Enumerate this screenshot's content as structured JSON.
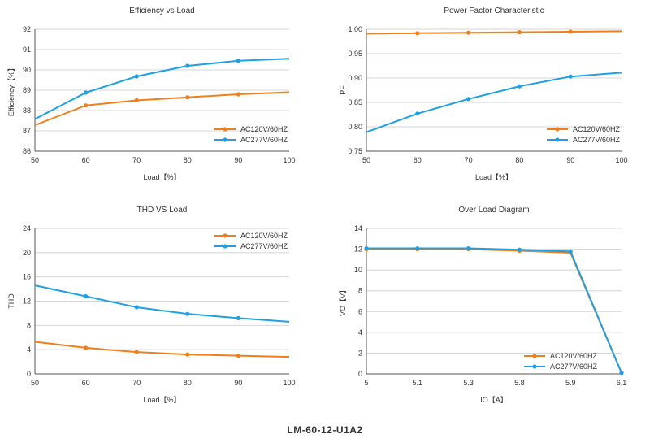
{
  "footer": "LM-60-12-U1A2",
  "colors": {
    "orange": "#f07f1a",
    "blue": "#1ea0e6",
    "grid": "#d4d4d4",
    "axis": "#555555"
  },
  "chart_data": [
    {
      "type": "line",
      "title": "Efficiency vs Load",
      "xlabel": "Load【%】",
      "ylabel": "Efficiency【%】",
      "xticks": [
        50,
        60,
        70,
        80,
        90,
        100
      ],
      "xtick_labels": [
        "50",
        "60",
        "70",
        "80",
        "90",
        "100"
      ],
      "yticks": [
        86,
        87,
        88,
        89,
        90,
        91,
        92
      ],
      "ytick_labels": [
        "86",
        "87",
        "88",
        "89",
        "90",
        "91",
        "92"
      ],
      "xlim": [
        50,
        100
      ],
      "ylim": [
        86,
        92
      ],
      "legend": "bottom-right",
      "series": [
        {
          "name": "AC120V/60HZ",
          "color": "orange",
          "x": [
            50,
            60,
            70,
            80,
            90,
            100
          ],
          "y": [
            87.28,
            88.25,
            88.5,
            88.65,
            88.8,
            88.9
          ],
          "markers": [
            60,
            70,
            80,
            90
          ]
        },
        {
          "name": "AC277V/60HZ",
          "color": "blue",
          "x": [
            50,
            60,
            70,
            80,
            90,
            100
          ],
          "y": [
            87.58,
            88.88,
            89.68,
            90.2,
            90.45,
            90.55
          ],
          "markers": [
            60,
            70,
            80,
            90
          ]
        }
      ]
    },
    {
      "type": "line",
      "title": "Power Factor Characteristic",
      "xlabel": "Load【%】",
      "ylabel": "PF",
      "xticks": [
        50,
        60,
        70,
        80,
        90,
        100
      ],
      "xtick_labels": [
        "50",
        "60",
        "70",
        "80",
        "90",
        "100"
      ],
      "yticks": [
        0.75,
        0.8,
        0.85,
        0.9,
        0.95,
        1.0
      ],
      "ytick_labels": [
        "0.75",
        "0.80",
        "0.85",
        "0.90",
        "0.95",
        "1.00"
      ],
      "xlim": [
        50,
        100
      ],
      "ylim": [
        0.75,
        1.0
      ],
      "legend": "bottom-right",
      "series": [
        {
          "name": "AC120V/60HZ",
          "color": "orange",
          "x": [
            50,
            60,
            70,
            80,
            90,
            100
          ],
          "y": [
            0.991,
            0.992,
            0.993,
            0.994,
            0.995,
            0.996
          ],
          "markers": [
            60,
            70,
            80,
            90
          ]
        },
        {
          "name": "AC277V/60HZ",
          "color": "blue",
          "x": [
            50,
            60,
            70,
            80,
            90,
            100
          ],
          "y": [
            0.789,
            0.827,
            0.857,
            0.883,
            0.903,
            0.911
          ],
          "markers": [
            60,
            70,
            80,
            90
          ]
        }
      ]
    },
    {
      "type": "line",
      "title": "THD VS Load",
      "xlabel": "Load【%】",
      "ylabel": "THD",
      "xticks": [
        50,
        60,
        70,
        80,
        90,
        100
      ],
      "xtick_labels": [
        "50",
        "60",
        "70",
        "80",
        "90",
        "100"
      ],
      "yticks": [
        0,
        4,
        8,
        12,
        16,
        20,
        24
      ],
      "ytick_labels": [
        "0",
        "4",
        "8",
        "12",
        "16",
        "20",
        "24"
      ],
      "xlim": [
        50,
        100
      ],
      "ylim": [
        0,
        24
      ],
      "legend": "top-right",
      "series": [
        {
          "name": "AC120V/60HZ",
          "color": "orange",
          "x": [
            50,
            60,
            70,
            80,
            90,
            100
          ],
          "y": [
            5.3,
            4.3,
            3.6,
            3.2,
            3.0,
            2.8
          ],
          "markers": [
            60,
            70,
            80,
            90
          ]
        },
        {
          "name": "AC277V/60HZ",
          "color": "blue",
          "x": [
            50,
            60,
            70,
            80,
            90,
            100
          ],
          "y": [
            14.6,
            12.8,
            11.0,
            9.9,
            9.2,
            8.6
          ],
          "markers": [
            60,
            70,
            80,
            90
          ]
        }
      ]
    },
    {
      "type": "line",
      "title": "Over Load Diagram",
      "xlabel": "IO【A】",
      "ylabel": "VO【V】",
      "xticks": [
        0,
        1,
        2,
        3,
        4,
        5
      ],
      "xtick_labels": [
        "5",
        "5.1",
        "5.3",
        "5.8",
        "5.9",
        "6.1"
      ],
      "yticks": [
        0,
        2,
        4,
        6,
        8,
        10,
        12,
        14
      ],
      "ytick_labels": [
        "0",
        "2",
        "4",
        "6",
        "8",
        "10",
        "12",
        "14"
      ],
      "xlim": [
        0,
        5
      ],
      "ylim": [
        0,
        14
      ],
      "legend": "bottom-right",
      "series": [
        {
          "name": "AC120V/60HZ",
          "color": "orange",
          "x": [
            0,
            1,
            2,
            3,
            4,
            5
          ],
          "y": [
            12.0,
            12.0,
            12.0,
            11.85,
            11.65,
            0.1
          ],
          "markers": [
            0,
            1,
            2,
            3,
            4,
            5
          ]
        },
        {
          "name": "AC277V/60HZ",
          "color": "blue",
          "x": [
            0,
            1,
            2,
            3,
            4,
            5
          ],
          "y": [
            12.08,
            12.08,
            12.08,
            11.95,
            11.78,
            0.1
          ],
          "markers": [
            0,
            1,
            2,
            3,
            4,
            5
          ]
        }
      ]
    }
  ]
}
